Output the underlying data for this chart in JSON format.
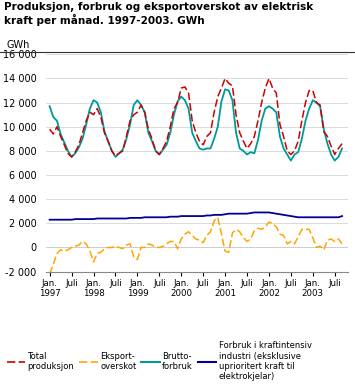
{
  "title": "Produksjon, forbruk og eksportoverskot av elektrisk\nkraft per månad. 1997-2003. GWh",
  "ylabel": "GWh",
  "ylim": [
    -2000,
    16000
  ],
  "yticks": [
    -2000,
    0,
    2000,
    4000,
    6000,
    8000,
    10000,
    12000,
    14000,
    16000
  ],
  "bg_color": "#ffffff",
  "grid_color": "#cccccc",
  "total_produksjon": [
    9800,
    9400,
    10000,
    9200,
    8500,
    7800,
    7500,
    7900,
    8500,
    9500,
    10500,
    11200,
    11000,
    11500,
    10800,
    9500,
    8800,
    8000,
    7600,
    7800,
    8000,
    9200,
    10500,
    11000,
    11200,
    11800,
    11200,
    9800,
    9000,
    8000,
    7700,
    8200,
    8800,
    10000,
    11500,
    12000,
    13200,
    13300,
    12800,
    10500,
    9500,
    8800,
    8500,
    9200,
    9500,
    11200,
    12500,
    13200,
    14000,
    13600,
    13400,
    11000,
    9500,
    8800,
    8200,
    8600,
    9200,
    10500,
    12000,
    13200,
    14000,
    13200,
    12800,
    10200,
    9200,
    8000,
    7700,
    8000,
    8800,
    10500,
    12000,
    13000,
    13000,
    12000,
    11800,
    9600,
    9200,
    8400,
    7700,
    8200,
    8600
  ],
  "brutto_forbruk": [
    11700,
    10800,
    10500,
    9400,
    8700,
    8000,
    7500,
    7800,
    8300,
    9000,
    10200,
    11500,
    12200,
    12000,
    11200,
    9600,
    8800,
    8000,
    7500,
    7800,
    8100,
    9000,
    10200,
    11800,
    12200,
    11800,
    11200,
    9500,
    8800,
    8000,
    7700,
    8100,
    8500,
    9500,
    11000,
    12100,
    12500,
    12200,
    11500,
    9500,
    8800,
    8200,
    8100,
    8200,
    8200,
    9000,
    10000,
    12100,
    13100,
    13000,
    12200,
    9500,
    8200,
    8000,
    7700,
    7900,
    7800,
    8900,
    10500,
    11500,
    11700,
    11500,
    11200,
    9200,
    8200,
    7700,
    7200,
    7700,
    7900,
    9000,
    10500,
    11500,
    12200,
    12000,
    11700,
    9800,
    8600,
    7700,
    7200,
    7500,
    8200
  ],
  "eksport_overskot": [
    -2200,
    -1400,
    -500,
    -200,
    -300,
    -200,
    0,
    100,
    200,
    500,
    300,
    -300,
    -1200,
    -500,
    -400,
    -100,
    0,
    0,
    100,
    0,
    -100,
    200,
    300,
    -800,
    -1000,
    0,
    0,
    300,
    200,
    0,
    0,
    100,
    300,
    500,
    500,
    -100,
    700,
    1100,
    1300,
    1000,
    700,
    600,
    400,
    1000,
    1300,
    2200,
    2500,
    1100,
    -300,
    -400,
    1200,
    1500,
    1300,
    800,
    500,
    700,
    1400,
    1600,
    1500,
    1700,
    2100,
    2000,
    1700,
    1100,
    1000,
    300,
    500,
    300,
    900,
    1500,
    1500,
    1500,
    800,
    0,
    100,
    -200,
    600,
    700,
    500,
    700,
    300
  ],
  "kraftintensiv": [
    2300,
    2300,
    2300,
    2300,
    2300,
    2300,
    2300,
    2350,
    2350,
    2350,
    2350,
    2350,
    2350,
    2400,
    2400,
    2400,
    2400,
    2400,
    2400,
    2400,
    2400,
    2400,
    2450,
    2450,
    2450,
    2450,
    2500,
    2500,
    2500,
    2500,
    2500,
    2500,
    2500,
    2550,
    2550,
    2550,
    2600,
    2600,
    2600,
    2600,
    2600,
    2600,
    2600,
    2650,
    2650,
    2700,
    2700,
    2700,
    2750,
    2800,
    2800,
    2800,
    2800,
    2800,
    2800,
    2850,
    2900,
    2900,
    2900,
    2900,
    2900,
    2850,
    2800,
    2750,
    2700,
    2650,
    2600,
    2550,
    2500,
    2500,
    2500,
    2500,
    2500,
    2500,
    2500,
    2500,
    2500,
    2500,
    2500,
    2500,
    2600
  ],
  "colors": {
    "total_produksjon": "#CC0000",
    "eksport_overskot": "#FFA500",
    "brutto_forbruk": "#009999",
    "kraftintensiv": "#000099"
  },
  "legend_labels": [
    "Total\nproduksjon",
    "Eksport-\noverskot",
    "Brutto-\nforbruk",
    "Forbruk i kraftintensiv\nindustri (eksklusive\nuprioritert kraft til\nelektrokjelar)"
  ]
}
